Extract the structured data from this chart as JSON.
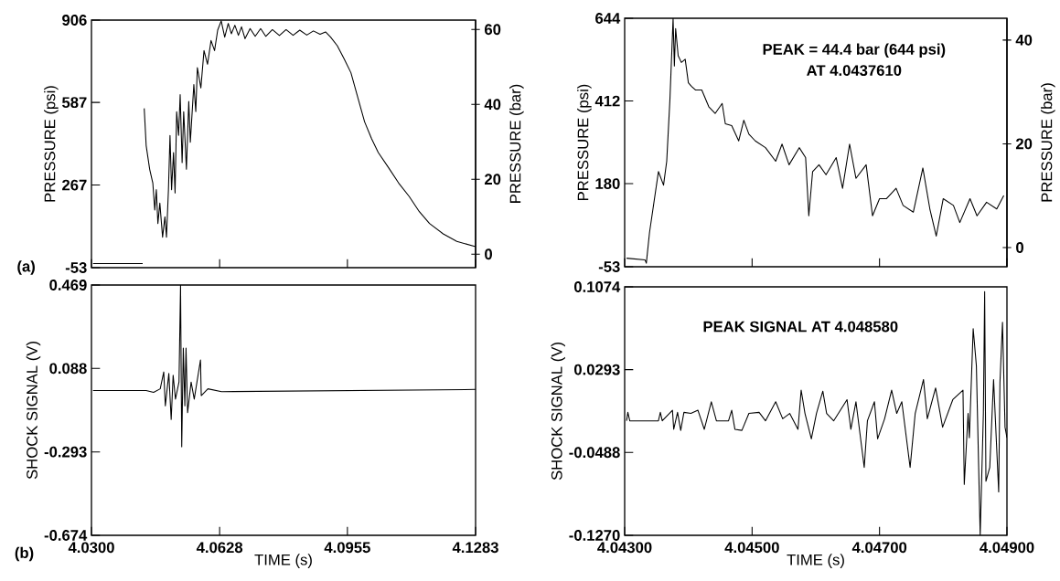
{
  "chart_data": [
    {
      "type": "line",
      "ylabel": "PRESSURE (psi)",
      "y2label": "PRESSURE (bar)",
      "annotations": [
        "(a)"
      ],
      "marker": "none",
      "line_style": "solid",
      "tick_labels": "y",
      "xlim": [
        4.03,
        4.1283
      ],
      "xticks": [
        {
          "value": 4.03,
          "label": null
        },
        {
          "value": 4.0628,
          "label": null
        },
        {
          "value": 4.0955,
          "label": null
        },
        {
          "value": 4.1283,
          "label": null
        }
      ],
      "ylim": [
        -53,
        906
      ],
      "yticks": [
        -53,
        267,
        587,
        906
      ],
      "y2lim": [
        -3.6,
        62.5
      ],
      "y2ticks": [
        0,
        20,
        40,
        60
      ],
      "series": [
        {
          "color": "#000000",
          "x": [
            4.0304,
            4.0431,
            4.0433,
            4.0435,
            4.044,
            4.0449,
            4.0457,
            4.0462,
            4.0466,
            4.047,
            4.0475,
            4.0482,
            4.0488,
            4.0492,
            4.0497,
            4.0501,
            4.0505,
            4.051,
            4.0514,
            4.0518,
            4.0523,
            4.0527,
            4.0532,
            4.0536,
            4.0543,
            4.0549,
            4.0553,
            4.0562,
            4.0567,
            4.0571,
            4.058,
            4.0588,
            4.0597,
            4.0606,
            4.0615,
            4.0623,
            4.0632,
            4.0641,
            4.065,
            4.0658,
            4.0667,
            4.0676,
            4.0684,
            4.0693,
            4.0706,
            4.0719,
            4.0733,
            4.0746,
            4.0763,
            4.0781,
            4.0798,
            4.0816,
            4.0833,
            4.0851,
            4.0868,
            4.0885,
            4.0899,
            4.0912,
            4.0929,
            4.0947,
            4.0964,
            4.0982,
            4.0999,
            4.1017,
            4.1034,
            4.106,
            4.1086,
            4.1113,
            4.1139,
            4.1165,
            4.12,
            4.1235,
            4.1283
          ],
          "values": [
            -37,
            -37,
            null,
            564,
            420,
            328,
            275,
            170,
            249,
            118,
            197,
            65,
            144,
            65,
            249,
            459,
            249,
            393,
            236,
            551,
            459,
            617,
            354,
            551,
            328,
            591,
            433,
            656,
            551,
            722,
            643,
            788,
            735,
            827,
            788,
            867,
            903,
            840,
            893,
            853,
            886,
            847,
            880,
            834,
            873,
            843,
            873,
            843,
            869,
            846,
            869,
            847,
            867,
            848,
            864,
            851,
            860,
            840,
            807,
            755,
            702,
            604,
            512,
            446,
            393,
            335,
            275,
            223,
            164,
            118,
            78,
            49,
            28
          ]
        }
      ]
    },
    {
      "type": "line",
      "ylabel": "PRESSURE (psi)",
      "y2label": "PRESSURE (bar)",
      "annotations": [
        "PEAK = 44.4 bar (644 psi)",
        "AT 4.0437610"
      ],
      "marker": "none",
      "line_style": "solid",
      "tick_labels": "y",
      "xlim": [
        4.043,
        4.049
      ],
      "xticks": [
        {
          "value": 4.043,
          "label": null
        },
        {
          "value": 4.045,
          "label": null
        },
        {
          "value": 4.047,
          "label": null
        },
        {
          "value": 4.049,
          "label": null
        }
      ],
      "ylim": [
        -53,
        644
      ],
      "yticks": [
        -53,
        180,
        412,
        644
      ],
      "y2lim": [
        -3.7,
        44.2
      ],
      "y2ticks": [
        0,
        20,
        40
      ],
      "series": [
        {
          "color": "#000000",
          "x": [
            4.04303,
            4.04332,
            4.04334,
            4.04339,
            4.04353,
            4.04361,
            4.04366,
            4.04371,
            4.04376,
            4.04378,
            4.0438,
            4.04384,
            4.04389,
            4.04395,
            4.044,
            4.04405,
            4.04411,
            4.04421,
            4.04432,
            4.04442,
            4.04453,
            4.04458,
            4.04468,
            4.04479,
            4.04487,
            4.04495,
            4.04505,
            4.04521,
            4.04537,
            4.04547,
            4.04558,
            4.04574,
            4.04584,
            4.04589,
            4.04595,
            4.04605,
            4.04616,
            4.04632,
            4.04642,
            4.04653,
            4.04663,
            4.04679,
            4.04689,
            4.047,
            4.04711,
            4.04726,
            4.04737,
            4.04753,
            4.04768,
            4.04779,
            4.04789,
            4.048,
            4.04816,
            4.04826,
            4.04842,
            4.04853,
            4.04868,
            4.04884,
            4.04895
          ],
          "values": [
            -29,
            -34,
            -43,
            43,
            214,
            176,
            243,
            415,
            644,
            510,
            615,
            539,
            520,
            529,
            463,
            453,
            443,
            443,
            396,
            377,
            405,
            348,
            343,
            300,
            358,
            319,
            300,
            281,
            243,
            291,
            233,
            281,
            253,
            90,
            214,
            233,
            205,
            253,
            167,
            291,
            195,
            233,
            90,
            138,
            138,
            167,
            119,
            100,
            224,
            109,
            33,
            138,
            119,
            71,
            138,
            90,
            128,
            109,
            147
          ]
        }
      ]
    },
    {
      "type": "line",
      "xlabel": "TIME (s)",
      "ylabel": "SHOCK SIGNAL (V)",
      "annotations": [
        "(b)"
      ],
      "marker": "none",
      "line_style": "solid",
      "xlim": [
        4.03,
        4.1283
      ],
      "xticks": [
        {
          "value": 4.03,
          "label": "4.0300"
        },
        {
          "value": 4.0628,
          "label": "4.0628"
        },
        {
          "value": 4.0955,
          "label": "4.0955"
        },
        {
          "value": 4.1283,
          "label": "4.1283"
        }
      ],
      "ylim": [
        -0.674,
        0.469
      ],
      "yticks": [
        -0.674,
        -0.293,
        0.088,
        0.469
      ],
      "series": [
        {
          "color": "#000000",
          "x": [
            4.0304,
            4.044,
            4.0459,
            4.0476,
            4.0485,
            4.0489,
            4.0498,
            4.0504,
            4.0509,
            4.0515,
            4.0524,
            4.0528,
            4.0531,
            4.0535,
            4.0539,
            4.0542,
            4.0546,
            4.0555,
            4.0563,
            4.0579,
            4.0581,
            4.0598,
            4.0633,
            4.1283
          ],
          "values": [
            -0.013,
            -0.013,
            -0.021,
            -0.005,
            0.072,
            -0.083,
            0.065,
            -0.145,
            0.057,
            -0.052,
            0.026,
            0.469,
            -0.27,
            0.181,
            -0.083,
            0.181,
            -0.114,
            0.026,
            -0.052,
            0.127,
            -0.036,
            -0.005,
            -0.018,
            -0.008
          ]
        }
      ]
    },
    {
      "type": "line",
      "xlabel": "TIME (s)",
      "ylabel": "SHOCK SIGNAL (V)",
      "annotations": [
        "PEAK SIGNAL AT 4.048580"
      ],
      "marker": "none",
      "line_style": "solid",
      "xlim": [
        4.043,
        4.049
      ],
      "xticks": [
        {
          "value": 4.043,
          "label": "4.04300"
        },
        {
          "value": 4.045,
          "label": "4.04500"
        },
        {
          "value": 4.047,
          "label": "4.04700"
        },
        {
          "value": 4.049,
          "label": "4.04900"
        }
      ],
      "ylim": [
        -0.127,
        0.1074
      ],
      "yticks": [
        {
          "value": -0.127,
          "label": "-0.1270"
        },
        -0.0488,
        0.0293,
        0.1074
      ],
      "series": [
        {
          "color": "#000000",
          "x": [
            4.04303,
            4.04305,
            4.04308,
            4.04353,
            4.04356,
            4.04359,
            4.04375,
            4.04377,
            4.04383,
            4.04388,
            4.04393,
            4.04404,
            4.04415,
            4.04425,
            4.04436,
            4.04444,
            4.04463,
            4.04468,
            4.04473,
            4.04484,
            4.04495,
            4.04511,
            4.04521,
            4.04537,
            4.04548,
            4.04559,
            4.04572,
            4.04577,
            4.04583,
            4.04593,
            4.04601,
            4.04611,
            4.04617,
            4.04628,
            4.04649,
            4.04655,
            4.04663,
            4.04676,
            4.04681,
            4.04692,
            4.04697,
            4.04708,
            4.04719,
            4.04727,
            4.04735,
            4.04748,
            4.04756,
            4.04769,
            4.04775,
            4.04788,
            4.04799,
            4.04815,
            4.04831,
            4.04833,
            4.04839,
            4.04841,
            4.04847,
            4.04852,
            4.04858,
            4.04863,
            4.04865,
            4.04867,
            4.04873,
            4.04879,
            4.04887,
            4.04889,
            4.04893,
            4.04897,
            4.049
          ],
          "values": [
            -0.019,
            -0.011,
            -0.019,
            -0.019,
            -0.011,
            -0.019,
            -0.009,
            -0.027,
            -0.011,
            -0.028,
            -0.011,
            -0.012,
            -0.009,
            -0.027,
            -0.001,
            -0.019,
            -0.019,
            -0.009,
            -0.027,
            -0.028,
            -0.012,
            -0.011,
            -0.019,
            -0.001,
            -0.017,
            -0.012,
            -0.027,
            0.01,
            -0.012,
            -0.036,
            -0.012,
            0.009,
            -0.012,
            -0.019,
            0.001,
            -0.027,
            -0.001,
            -0.063,
            -0.019,
            -0.001,
            -0.036,
            -0.017,
            0.01,
            -0.012,
            -0.001,
            -0.063,
            -0.012,
            0.02,
            -0.017,
            0.012,
            -0.025,
            0.001,
            0.01,
            -0.079,
            -0.012,
            -0.035,
            0.068,
            0.033,
            -0.127,
            -0.012,
            0.103,
            -0.076,
            -0.063,
            0.02,
            -0.086,
            0.017,
            0.074,
            -0.025,
            -0.035
          ]
        }
      ]
    }
  ]
}
